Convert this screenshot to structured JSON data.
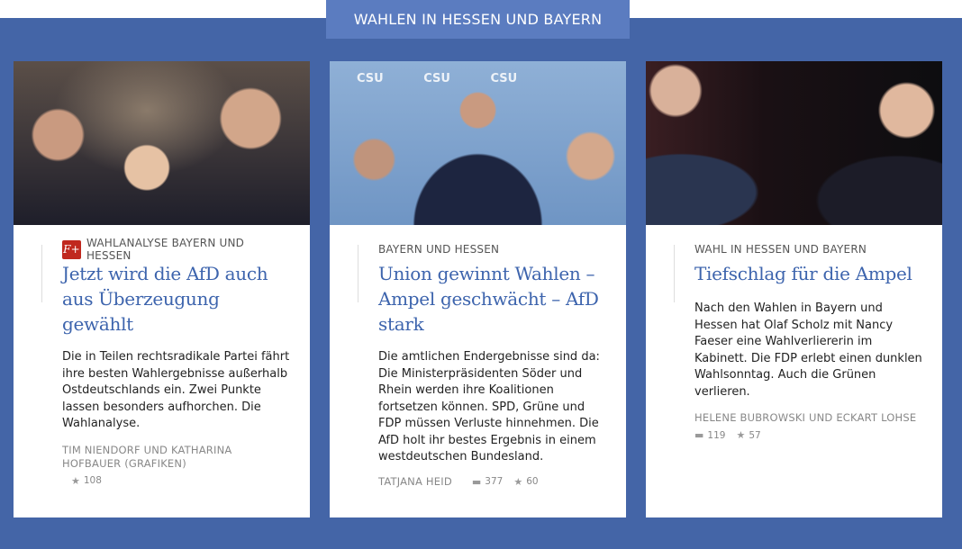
{
  "section": {
    "title": "WAHLEN IN HESSEN UND BAYERN"
  },
  "colors": {
    "background": "#4465a7",
    "tab": "#5b7cc0",
    "headline": "#3d64ad",
    "fplus": "#c0281e"
  },
  "articles": [
    {
      "kicker": "WAHLANALYSE BAYERN UND HESSEN",
      "premium": true,
      "premium_badge": "F+",
      "title": "Jetzt wird die AfD auch aus Überzeugung gewählt",
      "teaser": "Die in Teilen rechtsradikale Partei fährt ihre besten Wahlergebnisse außerhalb Ostdeutschlands ein. Zwei Punkte lassen besonders aufhorchen. Die Wahlanalyse.",
      "author": "TIM NIENDORF UND KATHARINA HOFBAUER (GRAFIKEN)",
      "stars": "108"
    },
    {
      "kicker": "BAYERN UND HESSEN",
      "title": "Union gewinnt Wahlen – Ampel geschwächt – AfD stark",
      "teaser": "Die amtlichen Endergebnisse sind da: Die Ministerpräsidenten Söder und Rhein werden ihre Koalitionen fortsetzen können. SPD, Grüne und FDP müssen Verluste hinnehmen. Die AfD holt ihr bestes Ergebnis in einem westdeutschen Bundesland.",
      "author": "TATJANA HEID",
      "comments": "377",
      "stars": "60",
      "image_text": "CSU"
    },
    {
      "kicker": "WAHL IN HESSEN UND BAYERN",
      "title": "Tiefschlag für die Ampel",
      "teaser": "Nach den Wahlen in Bayern und Hessen hat Olaf Scholz mit Nancy Faeser eine Wahlverliererin im Kabinett. Die FDP erlebt einen dunklen Wahlsonntag. Auch die Grünen verlieren.",
      "author": "HELENE BUBROWSKI UND ECKART LOHSE",
      "comments": "119",
      "stars": "57"
    }
  ]
}
